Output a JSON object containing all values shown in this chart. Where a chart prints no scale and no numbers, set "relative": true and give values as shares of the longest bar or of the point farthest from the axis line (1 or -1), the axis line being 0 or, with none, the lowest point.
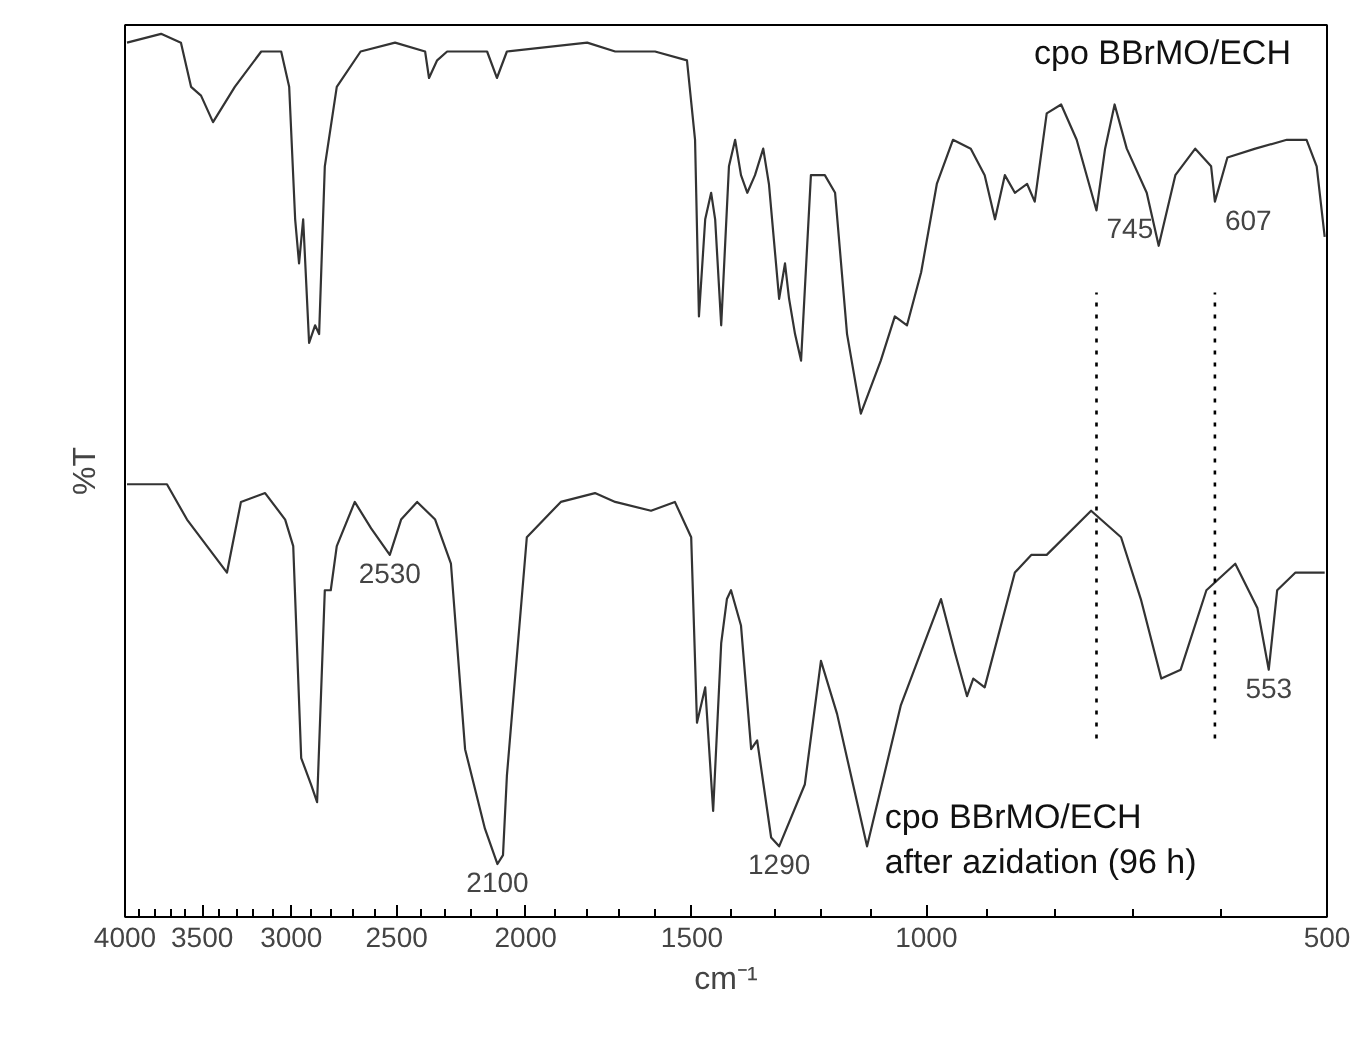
{
  "chart_data": {
    "type": "line",
    "relative": true,
    "log": "x",
    "xlabel": "cm⁻¹",
    "ylabel": "%T",
    "xlim": [
      4000,
      500
    ],
    "xticks": [
      4000,
      3500,
      3000,
      2500,
      2000,
      1500,
      1000,
      500,
      {
        "value": 3900,
        "label": null
      },
      {
        "value": 3800,
        "label": null
      },
      {
        "value": 3700,
        "label": null
      },
      {
        "value": 3600,
        "label": null
      },
      {
        "value": 3400,
        "label": null
      },
      {
        "value": 3300,
        "label": null
      },
      {
        "value": 3200,
        "label": null
      },
      {
        "value": 3100,
        "label": null
      },
      {
        "value": 2900,
        "label": null
      },
      {
        "value": 2800,
        "label": null
      },
      {
        "value": 2700,
        "label": null
      },
      {
        "value": 2600,
        "label": null
      },
      {
        "value": 2400,
        "label": null
      },
      {
        "value": 2300,
        "label": null
      },
      {
        "value": 2200,
        "label": null
      },
      {
        "value": 2100,
        "label": null
      },
      {
        "value": 1900,
        "label": null
      },
      {
        "value": 1800,
        "label": null
      },
      {
        "value": 1700,
        "label": null
      },
      {
        "value": 1600,
        "label": null
      },
      {
        "value": 1400,
        "label": null
      },
      {
        "value": 1300,
        "label": null
      },
      {
        "value": 1200,
        "label": null
      },
      {
        "value": 1100,
        "label": null
      },
      {
        "value": 900,
        "label": null
      },
      {
        "value": 800,
        "label": null
      },
      {
        "value": 700,
        "label": null
      },
      {
        "value": 600,
        "label": null
      }
    ],
    "grid": false,
    "line_style": "solid",
    "series": [
      {
        "name": "cpo BBrMO/ECH",
        "color": "#333333",
        "x": [
          3986,
          3758,
          3631,
          3568,
          3507,
          3435,
          3308,
          3160,
          3053,
          3011,
          2980,
          2960,
          2939,
          2909,
          2879,
          2859,
          2831,
          2773,
          2661,
          2507,
          2380,
          2364,
          2331,
          2291,
          2138,
          2102,
          2066,
          1798,
          1713,
          1599,
          1513,
          1492,
          1482,
          1466,
          1451,
          1441,
          1426,
          1407,
          1392,
          1378,
          1363,
          1345,
          1326,
          1313,
          1290,
          1277,
          1268,
          1255,
          1242,
          1221,
          1192,
          1171,
          1147,
          1120,
          1082,
          1056,
          1034,
          1009,
          982,
          955,
          926,
          904,
          888,
          873,
          858,
          840,
          829,
          812,
          792,
          771,
          745,
          734,
          722,
          707,
          683,
          669,
          650,
          628,
          611,
          607,
          594,
          566,
          536,
          518,
          509,
          502
        ],
        "values": [
          0.99,
          1.0,
          0.99,
          0.94,
          0.93,
          0.9,
          0.94,
          0.98,
          0.98,
          0.94,
          0.79,
          0.74,
          0.79,
          0.65,
          0.67,
          0.66,
          0.85,
          0.94,
          0.98,
          0.99,
          0.98,
          0.95,
          0.97,
          0.98,
          0.98,
          0.95,
          0.98,
          0.99,
          0.98,
          0.98,
          0.97,
          0.88,
          0.68,
          0.79,
          0.82,
          0.79,
          0.67,
          0.85,
          0.88,
          0.84,
          0.82,
          0.84,
          0.87,
          0.83,
          0.7,
          0.74,
          0.7,
          0.66,
          0.63,
          0.84,
          0.84,
          0.82,
          0.66,
          0.57,
          0.63,
          0.68,
          0.67,
          0.73,
          0.83,
          0.88,
          0.87,
          0.84,
          0.79,
          0.84,
          0.82,
          0.83,
          0.81,
          0.91,
          0.92,
          0.88,
          0.8,
          0.87,
          0.92,
          0.87,
          0.82,
          0.76,
          0.84,
          0.87,
          0.85,
          0.81,
          0.86,
          0.87,
          0.88,
          0.88,
          0.85,
          0.77
        ]
      },
      {
        "name": "cpo BBrMO/ECH\nafter azidation (96 h)",
        "color": "#333333",
        "x": [
          3986,
          3720,
          3593,
          3471,
          3353,
          3273,
          3139,
          3032,
          2990,
          2949,
          2899,
          2869,
          2831,
          2802,
          2773,
          2688,
          2613,
          2530,
          2481,
          2413,
          2339,
          2276,
          2221,
          2146,
          2100,
          2080,
          2066,
          1996,
          1882,
          1774,
          1713,
          1610,
          1545,
          1502,
          1487,
          1466,
          1446,
          1426,
          1412,
          1402,
          1378,
          1354,
          1340,
          1308,
          1290,
          1234,
          1200,
          1167,
          1108,
          1045,
          975,
          952,
          932,
          922,
          904,
          858,
          834,
          812,
          752,
          714,
          690,
          666,
          644,
          616,
          586,
          564,
          553,
          545,
          528,
          502
        ],
        "values": [
          0.49,
          0.49,
          0.45,
          0.42,
          0.39,
          0.47,
          0.48,
          0.45,
          0.42,
          0.18,
          0.15,
          0.13,
          0.37,
          0.37,
          0.42,
          0.47,
          0.44,
          0.41,
          0.45,
          0.47,
          0.45,
          0.4,
          0.19,
          0.1,
          0.06,
          0.07,
          0.16,
          0.43,
          0.47,
          0.48,
          0.47,
          0.46,
          0.47,
          0.43,
          0.22,
          0.26,
          0.12,
          0.31,
          0.36,
          0.37,
          0.33,
          0.19,
          0.2,
          0.09,
          0.08,
          0.15,
          0.29,
          0.23,
          0.08,
          0.24,
          0.36,
          0.3,
          0.25,
          0.27,
          0.26,
          0.39,
          0.41,
          0.41,
          0.46,
          0.43,
          0.36,
          0.27,
          0.28,
          0.37,
          0.4,
          0.35,
          0.28,
          0.37,
          0.39,
          0.39
        ]
      }
    ],
    "ref_lines": [
      {
        "axis": "x",
        "value": 745,
        "line_style": "dotted",
        "color": "#000000"
      },
      {
        "axis": "x",
        "value": 607,
        "line_style": "dotted",
        "color": "#000000"
      }
    ],
    "annotations": [
      {
        "text": "745",
        "x": 745,
        "y": 0.8
      },
      {
        "text": "607",
        "x": 607,
        "y": 0.81
      },
      {
        "text": "2530",
        "x": 2530,
        "y": 0.41
      },
      {
        "text": "2100",
        "x": 2100,
        "y": 0.06
      },
      {
        "text": "1290",
        "x": 1290,
        "y": 0.08
      },
      {
        "text": "553",
        "x": 553,
        "y": 0.28
      }
    ]
  }
}
